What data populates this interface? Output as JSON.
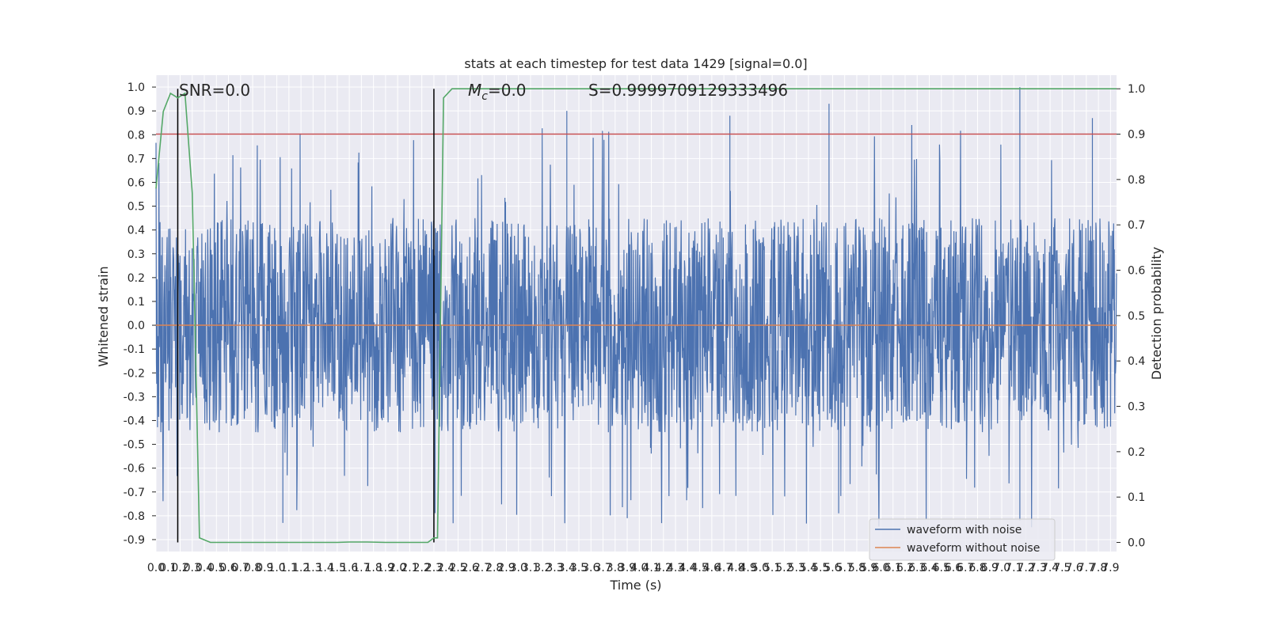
{
  "chart_data": {
    "type": "line",
    "title": "stats at each timestep for test data 1429 [signal=0.0]",
    "xlabel": "Time (s)",
    "ylabel": "Whitened strain",
    "y2label": "Detection probability",
    "xlim": [
      0.0,
      7.95
    ],
    "ylim": [
      -0.95,
      1.05
    ],
    "y2lim": [
      -0.02,
      1.03
    ],
    "xticks": [
      0.0,
      0.1,
      0.2,
      0.3,
      0.4,
      0.5,
      0.6,
      0.7,
      0.8,
      0.9,
      1.0,
      1.1,
      1.2,
      1.3,
      1.4,
      1.5,
      1.6,
      1.7,
      1.8,
      1.9,
      2.0,
      2.1,
      2.2,
      2.3,
      2.4,
      2.5,
      2.6,
      2.7,
      2.8,
      2.9,
      3.0,
      3.1,
      3.2,
      3.3,
      3.4,
      3.5,
      3.6,
      3.7,
      3.8,
      3.9,
      4.0,
      4.1,
      4.2,
      4.3,
      4.4,
      4.5,
      4.6,
      4.7,
      4.8,
      4.9,
      5.0,
      5.1,
      5.2,
      5.3,
      5.4,
      5.5,
      5.6,
      5.7,
      5.8,
      5.9,
      6.0,
      6.1,
      6.2,
      6.3,
      6.4,
      6.5,
      6.6,
      6.7,
      6.8,
      6.9,
      7.0,
      7.1,
      7.2,
      7.3,
      7.4,
      7.5,
      7.6,
      7.7,
      7.8,
      7.9
    ],
    "yticks": [
      -0.9,
      -0.8,
      -0.7,
      -0.6,
      -0.5,
      -0.4,
      -0.3,
      -0.2,
      -0.1,
      0.0,
      0.1,
      0.2,
      0.3,
      0.4,
      0.5,
      0.6,
      0.7,
      0.8,
      0.9,
      1.0
    ],
    "y2ticks": [
      0.0,
      0.1,
      0.2,
      0.3,
      0.4,
      0.5,
      0.6,
      0.7,
      0.8,
      0.9,
      1.0
    ],
    "grid": true,
    "legend_position": "lower-right",
    "colors": {
      "noise": "#4c72b0",
      "clean": "#dd8452",
      "prob": "#55a868",
      "threshold": "#c44e52",
      "marker": "#000000",
      "background": "#eaeaf2"
    },
    "series": [
      {
        "name": "waveform with noise",
        "axis": "left",
        "description_only": "dense noise band approx -0.5..0.45 with spikes",
        "peaks_max": 1.0,
        "peaks_min": -0.83
      },
      {
        "name": "waveform without noise",
        "axis": "left",
        "x": [
          0.0,
          7.95
        ],
        "y": [
          0.0,
          0.0
        ]
      }
    ],
    "detection_probability": {
      "axis": "right",
      "x": [
        0.0,
        0.06,
        0.12,
        0.18,
        0.24,
        0.3,
        0.36,
        0.45,
        0.6,
        0.8,
        1.0,
        1.5,
        1.6,
        1.75,
        1.9,
        2.1,
        2.2,
        2.25,
        2.3,
        2.33,
        2.38,
        2.45,
        2.5,
        2.8,
        3.0,
        4.0,
        5.0,
        6.0,
        7.0,
        7.95
      ],
      "y": [
        0.78,
        0.95,
        0.99,
        0.98,
        0.99,
        0.77,
        0.01,
        0.0,
        0.0,
        0.0,
        0.0,
        0.0,
        0.001,
        0.001,
        0.0,
        0.0,
        0.0,
        0.0,
        0.01,
        0.01,
        0.98,
        1.0,
        1.0,
        1.0,
        1.0,
        1.0,
        1.0,
        1.0,
        1.0,
        1.0
      ]
    },
    "threshold": {
      "axis": "right",
      "value": 0.9
    },
    "markers_x": [
      0.18,
      2.3
    ],
    "annotations": {
      "snr": "SNR=0.0",
      "mc_symbol": "M",
      "mc_sub": "c",
      "mc_value": "=0.0",
      "s": "S=0.9999709129333496"
    }
  }
}
